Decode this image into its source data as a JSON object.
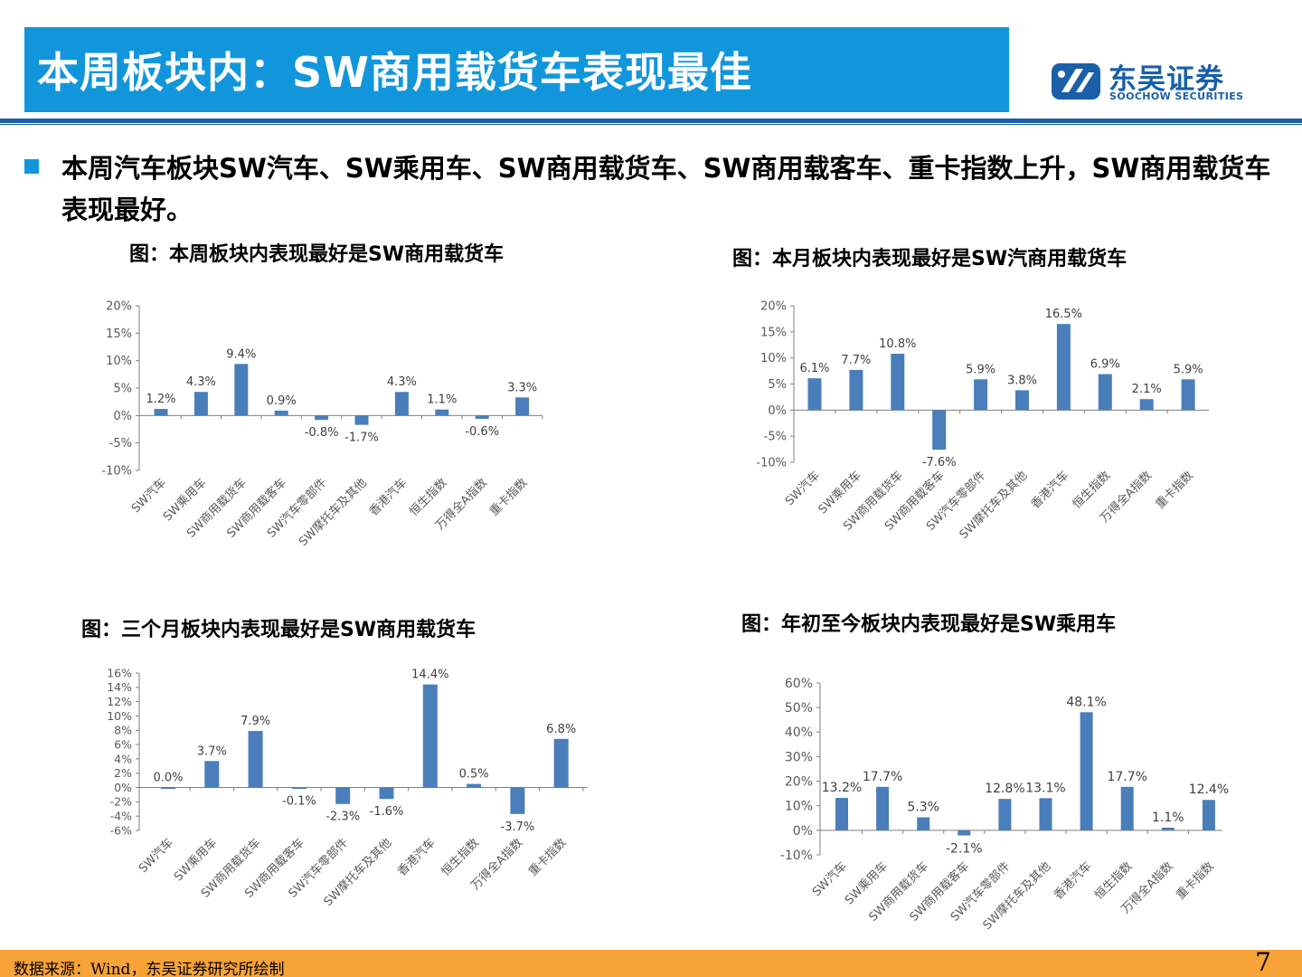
{
  "header": {
    "title": "本周板块内：SW商用载货车表现最佳",
    "logo_cn": "东吴证券",
    "logo_en": "SOOCHOW SECURITIES",
    "accent_color": "#1296db",
    "brand_color": "#1a5fa8"
  },
  "bullet": {
    "text": "本周汽车板块SW汽车、SW乘用车、SW商用载货车、SW商用载客车、重卡指数上升，SW商用载货车表现最好。"
  },
  "charts": [
    {
      "title": "图：本周板块内表现最好是SW商用载货车"
    },
    {
      "title": "图：本月板块内表现最好是SW汽商用载货车"
    },
    {
      "title": "图：三个月板块内表现最好是SW商用载货车"
    },
    {
      "title": "图：年初至今板块内表现最好是SW乘用车"
    }
  ],
  "chart_data": [
    {
      "type": "bar",
      "categories": [
        "SW汽车",
        "SW乘用车",
        "SW商用载货车",
        "SW商用载客车",
        "SW汽车零部件",
        "SW摩托车及其他",
        "香港汽车",
        "恒生指数",
        "万得全A指数",
        "重卡指数"
      ],
      "values": [
        1.2,
        4.3,
        9.4,
        0.9,
        -0.8,
        -1.7,
        4.3,
        1.1,
        -0.6,
        3.3
      ],
      "labels": [
        "1.2%",
        "4.3%",
        "9.4%",
        "0.9%",
        "-0.8%",
        "-1.7%",
        "4.3%",
        "1.1%",
        "-0.6%",
        "3.3%"
      ],
      "ylim": [
        -10,
        20
      ],
      "yticks": [
        -10,
        -5,
        0,
        5,
        10,
        15,
        20
      ],
      "ytick_labels": [
        "-10%",
        "-5%",
        "0%",
        "5%",
        "10%",
        "15%",
        "20%"
      ],
      "bar_color": "#4a7ebb"
    },
    {
      "type": "bar",
      "categories": [
        "SW汽车",
        "SW乘用车",
        "SW商用载货车",
        "SW商用载客车",
        "SW汽车零部件",
        "SW摩托车及其他",
        "香港汽车",
        "恒生指数",
        "万得全A指数",
        "重卡指数"
      ],
      "values": [
        6.1,
        7.7,
        10.8,
        -7.6,
        5.9,
        3.8,
        16.5,
        6.9,
        2.1,
        5.9
      ],
      "labels": [
        "6.1%",
        "7.7%",
        "10.8%",
        "-7.6%",
        "5.9%",
        "3.8%",
        "16.5%",
        "6.9%",
        "2.1%",
        "5.9%"
      ],
      "ylim": [
        -10,
        20
      ],
      "yticks": [
        -10,
        -5,
        0,
        5,
        10,
        15,
        20
      ],
      "ytick_labels": [
        "-10%",
        "-5%",
        "0%",
        "5%",
        "10%",
        "15%",
        "20%"
      ],
      "bar_color": "#4a7ebb"
    },
    {
      "type": "bar",
      "categories": [
        "SW汽车",
        "SW乘用车",
        "SW商用载货车",
        "SW商用载客车",
        "SW汽车零部件",
        "SW摩托车及其他",
        "香港汽车",
        "恒生指数",
        "万得全A指数",
        "重卡指数"
      ],
      "values": [
        0.0,
        3.7,
        7.9,
        -0.1,
        -2.3,
        -1.6,
        14.4,
        0.5,
        -3.7,
        6.8
      ],
      "labels": [
        "0.0%",
        "3.7%",
        "7.9%",
        "-0.1%",
        "-2.3%",
        "-1.6%",
        "14.4%",
        "0.5%",
        "-3.7%",
        "6.8%"
      ],
      "ylim": [
        -6,
        16
      ],
      "yticks": [
        -6,
        -4,
        -2,
        0,
        2,
        4,
        6,
        8,
        10,
        12,
        14,
        16
      ],
      "ytick_labels": [
        "-6%",
        "-4%",
        "-2%",
        "0%",
        "2%",
        "4%",
        "6%",
        "8%",
        "10%",
        "12%",
        "14%",
        "16%"
      ],
      "bar_color": "#4a7ebb"
    },
    {
      "type": "bar",
      "categories": [
        "SW汽车",
        "SW乘用车",
        "SW商用载货车",
        "SW商用载客车",
        "SW汽车零部件",
        "SW摩托车及其他",
        "香港汽车",
        "恒生指数",
        "万得全A指数",
        "重卡指数"
      ],
      "values": [
        13.2,
        17.7,
        5.3,
        -2.1,
        12.8,
        13.1,
        48.1,
        17.7,
        1.1,
        12.4
      ],
      "labels": [
        "13.2%",
        "17.7%",
        "5.3%",
        "-2.1%",
        "12.8%",
        "13.1%",
        "48.1%",
        "17.7%",
        "1.1%",
        "12.4%"
      ],
      "ylim": [
        -10,
        60
      ],
      "yticks": [
        -10,
        0,
        10,
        20,
        30,
        40,
        50,
        60
      ],
      "ytick_labels": [
        "-10%",
        "0%",
        "10%",
        "20%",
        "30%",
        "40%",
        "50%",
        "60%"
      ],
      "bar_color": "#4a7ebb"
    }
  ],
  "footer": {
    "source": "数据来源：Wind，东吴证券研究所绘制",
    "page_number": "7",
    "footer_color": "#f7a337"
  }
}
